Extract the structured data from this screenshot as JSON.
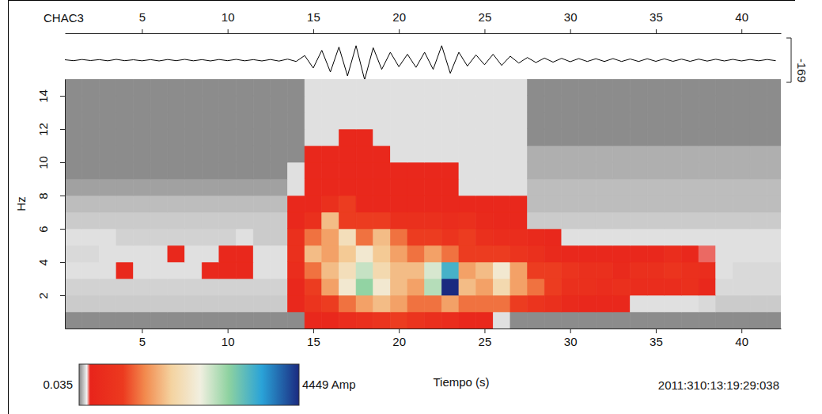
{
  "chart_data": [
    {
      "type": "line",
      "title": "CHAC3",
      "x": [
        0.5,
        1,
        1.5,
        2,
        2.5,
        3,
        3.5,
        4,
        4.5,
        5,
        5.5,
        6,
        6.5,
        7,
        7.5,
        8,
        8.5,
        9,
        9.5,
        10,
        10.5,
        11,
        11.5,
        12,
        12.5,
        13,
        13.5,
        14,
        14.5,
        15,
        15.5,
        16,
        16.5,
        17,
        17.5,
        18,
        18.5,
        19,
        19.5,
        20,
        20.5,
        21,
        21.5,
        22,
        22.5,
        23,
        23.5,
        24,
        24.5,
        25,
        25.5,
        26,
        26.5,
        27,
        27.5,
        28,
        28.5,
        29,
        29.5,
        30,
        30.5,
        31,
        31.5,
        32,
        32.5,
        33,
        33.5,
        34,
        34.5,
        35,
        35.5,
        36,
        36.5,
        37,
        37.5,
        38,
        38.5,
        39,
        39.5,
        40,
        40.5,
        41,
        41.5,
        42
      ],
      "values": [
        3,
        -4,
        5,
        -3,
        4,
        -5,
        6,
        -4,
        3,
        -5,
        4,
        -6,
        5,
        -4,
        6,
        -5,
        4,
        -6,
        5,
        -4,
        6,
        -5,
        4,
        -6,
        5,
        -7,
        8,
        -10,
        35,
        -60,
        75,
        -90,
        100,
        -120,
        110,
        -150,
        95,
        -70,
        60,
        -50,
        45,
        -55,
        60,
        -70,
        110,
        -100,
        60,
        -45,
        40,
        -35,
        45,
        -40,
        30,
        -22,
        20,
        -18,
        16,
        -15,
        14,
        -12,
        12,
        -10,
        11,
        -10,
        12,
        -10,
        9,
        -10,
        11,
        -9,
        10,
        -9,
        8,
        -9,
        8,
        -7,
        7,
        -6,
        6,
        -6,
        5,
        -5,
        5,
        -4
      ],
      "color": "#000000",
      "xlim": [
        0.5,
        42.3
      ],
      "xticks": [
        5,
        10,
        15,
        20,
        25,
        30,
        35,
        40
      ],
      "ylim": [
        -169,
        169
      ],
      "yticks": [
        -169
      ]
    },
    {
      "type": "heatmap",
      "x": [
        1,
        2,
        3,
        4,
        5,
        6,
        7,
        8,
        9,
        10,
        11,
        12,
        13,
        14,
        15,
        16,
        17,
        18,
        19,
        20,
        21,
        22,
        23,
        24,
        25,
        26,
        27,
        28,
        29,
        30,
        31,
        32,
        33,
        34,
        35,
        36,
        37,
        38,
        39,
        40,
        41,
        42
      ],
      "y": [
        0.5,
        1.5,
        2.5,
        3.5,
        4.5,
        5.5,
        6.5,
        7.5,
        8.5,
        9.5,
        10.5,
        11.5,
        12.5,
        13.5,
        14.5
      ],
      "z": [
        [
          10,
          10,
          10,
          10,
          10,
          10,
          10,
          10,
          10,
          10,
          10,
          10,
          10,
          10,
          350,
          350,
          500,
          600,
          700,
          900,
          700,
          600,
          500,
          350,
          350,
          130,
          10,
          10,
          10,
          10,
          10,
          10,
          10,
          10,
          10,
          10,
          10,
          10,
          10,
          10,
          10,
          10
        ],
        [
          100,
          100,
          100,
          100,
          100,
          100,
          100,
          100,
          100,
          100,
          100,
          100,
          100,
          350,
          700,
          900,
          1200,
          1500,
          1700,
          1500,
          1200,
          1200,
          1500,
          1200,
          1200,
          1200,
          900,
          700,
          600,
          400,
          350,
          350,
          350,
          130,
          130,
          130,
          130,
          120,
          100,
          100,
          100,
          100
        ],
        [
          110,
          110,
          110,
          110,
          110,
          110,
          110,
          110,
          110,
          110,
          110,
          110,
          110,
          350,
          900,
          1500,
          2300,
          3000,
          2300,
          1700,
          1500,
          2800,
          4449,
          1700,
          1500,
          2000,
          1500,
          1200,
          900,
          600,
          600,
          500,
          600,
          500,
          500,
          500,
          600,
          350,
          120,
          120,
          120,
          120
        ],
        [
          130,
          130,
          130,
          350,
          130,
          130,
          130,
          130,
          350,
          350,
          350,
          130,
          130,
          500,
          1200,
          1700,
          2100,
          2700,
          2000,
          1700,
          1700,
          2600,
          3500,
          1500,
          1700,
          2300,
          1500,
          900,
          900,
          700,
          600,
          600,
          400,
          600,
          600,
          700,
          600,
          500,
          130,
          120,
          120,
          120
        ],
        [
          120,
          120,
          130,
          130,
          130,
          130,
          350,
          130,
          130,
          350,
          350,
          130,
          130,
          600,
          1700,
          1500,
          1800,
          2300,
          1800,
          1500,
          1200,
          1500,
          1200,
          900,
          900,
          900,
          700,
          600,
          400,
          350,
          350,
          350,
          350,
          350,
          350,
          500,
          350,
          200,
          130,
          130,
          130,
          130
        ],
        [
          130,
          130,
          130,
          110,
          110,
          110,
          110,
          110,
          110,
          110,
          130,
          100,
          100,
          600,
          1200,
          1500,
          2100,
          1200,
          1700,
          1200,
          900,
          900,
          700,
          900,
          600,
          500,
          500,
          400,
          350,
          130,
          130,
          130,
          130,
          130,
          130,
          130,
          130,
          130,
          130,
          130,
          130,
          130
        ],
        [
          100,
          100,
          100,
          100,
          100,
          100,
          100,
          100,
          100,
          100,
          100,
          100,
          100,
          350,
          600,
          1700,
          900,
          900,
          900,
          600,
          600,
          600,
          500,
          600,
          400,
          350,
          350,
          100,
          100,
          100,
          100,
          100,
          100,
          100,
          100,
          100,
          100,
          100,
          100,
          100,
          100,
          100
        ],
        [
          80,
          80,
          80,
          80,
          80,
          80,
          80,
          80,
          80,
          80,
          80,
          80,
          80,
          350,
          350,
          600,
          900,
          350,
          350,
          350,
          350,
          350,
          350,
          350,
          350,
          350,
          350,
          80,
          80,
          80,
          80,
          80,
          80,
          80,
          80,
          80,
          80,
          80,
          80,
          80,
          80,
          80
        ],
        [
          40,
          40,
          40,
          40,
          40,
          40,
          40,
          40,
          40,
          40,
          40,
          40,
          40,
          130,
          350,
          350,
          350,
          350,
          350,
          350,
          350,
          350,
          350,
          130,
          130,
          130,
          130,
          80,
          80,
          80,
          80,
          80,
          80,
          80,
          80,
          80,
          80,
          80,
          80,
          80,
          80,
          80
        ],
        [
          10,
          10,
          10,
          10,
          10,
          10,
          10,
          10,
          10,
          10,
          10,
          10,
          10,
          130,
          350,
          350,
          350,
          350,
          350,
          350,
          350,
          350,
          350,
          130,
          130,
          130,
          130,
          60,
          60,
          60,
          60,
          60,
          60,
          60,
          60,
          60,
          60,
          60,
          60,
          60,
          60,
          60
        ],
        [
          10,
          10,
          10,
          10,
          10,
          10,
          10,
          10,
          10,
          10,
          10,
          10,
          10,
          10,
          350,
          350,
          350,
          350,
          350,
          130,
          130,
          130,
          130,
          130,
          130,
          130,
          130,
          60,
          60,
          60,
          60,
          60,
          60,
          60,
          60,
          60,
          60,
          60,
          60,
          60,
          60,
          60
        ],
        [
          10,
          10,
          10,
          10,
          10,
          10,
          10,
          10,
          10,
          10,
          10,
          10,
          10,
          10,
          130,
          130,
          350,
          350,
          130,
          130,
          130,
          130,
          130,
          130,
          130,
          130,
          130,
          10,
          10,
          10,
          10,
          10,
          10,
          10,
          10,
          10,
          10,
          10,
          10,
          10,
          10,
          10
        ],
        [
          10,
          10,
          10,
          10,
          10,
          10,
          10,
          10,
          10,
          10,
          10,
          10,
          10,
          10,
          130,
          130,
          130,
          130,
          130,
          130,
          130,
          130,
          130,
          130,
          130,
          130,
          130,
          10,
          10,
          10,
          10,
          10,
          10,
          10,
          10,
          10,
          10,
          10,
          10,
          10,
          10,
          10
        ],
        [
          10,
          10,
          10,
          10,
          10,
          10,
          10,
          10,
          10,
          10,
          10,
          10,
          10,
          10,
          130,
          130,
          130,
          130,
          130,
          130,
          130,
          130,
          130,
          130,
          130,
          130,
          130,
          10,
          10,
          10,
          10,
          10,
          10,
          10,
          10,
          10,
          10,
          10,
          10,
          10,
          10,
          10
        ],
        [
          10,
          10,
          10,
          10,
          10,
          10,
          10,
          10,
          10,
          10,
          10,
          10,
          10,
          10,
          130,
          130,
          130,
          130,
          130,
          130,
          130,
          130,
          130,
          130,
          130,
          130,
          130,
          10,
          10,
          10,
          10,
          10,
          10,
          10,
          10,
          10,
          10,
          10,
          10,
          10,
          10,
          10
        ]
      ],
      "xlim": [
        0.5,
        42.3
      ],
      "xticks": [
        5,
        10,
        15,
        20,
        25,
        30,
        35,
        40
      ],
      "ylim": [
        0,
        15
      ],
      "yticks": [
        2,
        4,
        6,
        8,
        10,
        12,
        14
      ],
      "xlabel": "Tiempo (s)",
      "ylabel": "Hz",
      "colorbar": {
        "range": [
          0.035,
          4449
        ],
        "ticks": [
          0.035,
          {
            "value": 4449,
            "label": "4449 Amp"
          }
        ],
        "colors": [
          "#858585",
          "#f2f2f2",
          "#e8241b",
          "#ec3a1f",
          "#f28a4e",
          "#f4d3a0",
          "#f1efe0",
          "#8ed2a0",
          "#2aa3d8",
          "#1b2a80"
        ]
      },
      "annotation": "2011:310:13:19:29:038"
    }
  ]
}
